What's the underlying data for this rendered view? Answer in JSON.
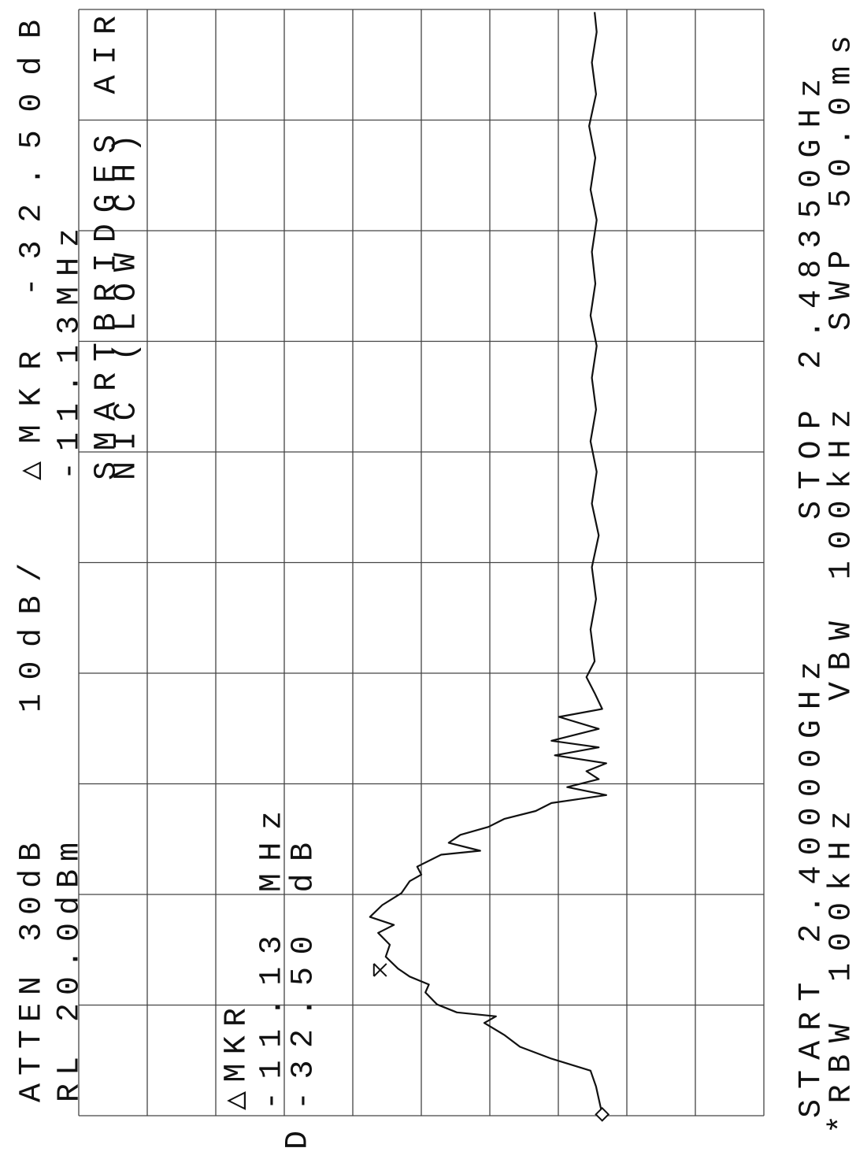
{
  "chart_data": {
    "type": "line",
    "annotations": [
      "ATTEN 30dB",
      "10dB/",
      "△MKR  -32.50dB",
      "RL 20.0dBm",
      "-11.13MHz",
      "SMARTBRIDGES AIR",
      "NIC (LOW CH)",
      "△MKR",
      "-11.13 MHz",
      "-32.50 dB",
      "D",
      "START 2.40000GHz",
      "STOP 2.48350GHz",
      "*RBW 100kHz",
      "VBW 100kHz",
      "SWP 50.0ms"
    ],
    "x": [
      2.4001,
      2.4022,
      2.4034,
      2.4043,
      2.4052,
      2.4061,
      2.407,
      2.4075,
      2.4078,
      2.4084,
      2.4093,
      2.4099,
      2.4105,
      2.4111,
      2.412,
      2.4129,
      2.4138,
      2.4144,
      2.415,
      2.4159,
      2.4168,
      2.4177,
      2.4182,
      2.4188,
      2.4197,
      2.42,
      2.4206,
      2.4212,
      2.4218,
      2.4224,
      2.423,
      2.4236,
      2.4242,
      2.4248,
      2.4254,
      2.426,
      2.4266,
      2.4272,
      2.4278,
      2.4283,
      2.4292,
      2.4301,
      2.4307,
      2.4319,
      2.4331,
      2.4343,
      2.4367,
      2.439,
      2.4414,
      2.4438,
      2.4462,
      2.4486,
      2.4509,
      2.4533,
      2.4557,
      2.4581,
      2.4604,
      2.4628,
      2.4652,
      2.4676,
      2.4699,
      2.4723,
      2.4747,
      2.4771,
      2.4795,
      2.4818,
      2.4833
    ],
    "values": [
      -56.4,
      -55.5,
      -54.7,
      -49.0,
      -44.4,
      -42.1,
      -39.2,
      -40.9,
      -35.2,
      -32.3,
      -30.6,
      -31.1,
      -28.3,
      -26.6,
      -24.8,
      -25.4,
      -23.7,
      -26.0,
      -22.5,
      -24.3,
      -27.1,
      -28.3,
      -30.0,
      -29.4,
      -32.9,
      -38.6,
      -34.0,
      -35.7,
      -39.8,
      -42.1,
      -46.7,
      -49.0,
      -57.0,
      -51.3,
      -55.9,
      -54.1,
      -57.0,
      -49.5,
      -55.9,
      -49.0,
      -55.9,
      -50.1,
      -56.4,
      -55.3,
      -54.1,
      -55.3,
      -54.7,
      -55.5,
      -54.9,
      -55.9,
      -54.9,
      -55.6,
      -54.7,
      -55.5,
      -54.9,
      -55.6,
      -54.7,
      -55.4,
      -54.9,
      -55.6,
      -54.7,
      -55.4,
      -54.5,
      -55.5,
      -54.9,
      -55.6,
      -55.3
    ],
    "color": "#111111",
    "markers": {
      "x": [
        2.4001,
        2.411
      ],
      "values": [
        -56.4,
        -24.0
      ]
    },
    "xlim": [
      2.4,
      2.4835
    ],
    "ylim": [
      -80,
      20
    ],
    "xticks": [
      2.4,
      2.40835,
      2.4167,
      2.42505,
      2.4334,
      2.44175,
      2.4501,
      2.45845,
      2.4668,
      2.47515,
      2.4835
    ],
    "yticks": [
      20,
      10,
      0,
      -10,
      -20,
      -30,
      -40,
      -50,
      -60,
      -70,
      -80
    ],
    "grid": true
  }
}
